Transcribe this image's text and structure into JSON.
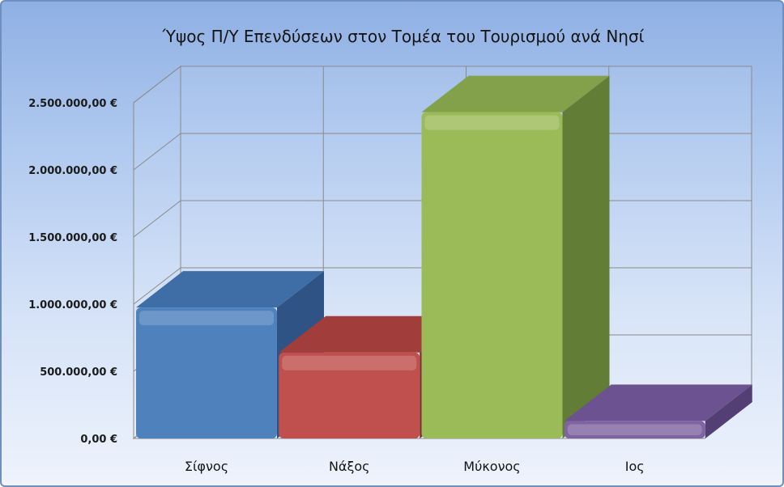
{
  "chart_data": {
    "type": "bar",
    "title": "Ύψος Π/Υ Επενδύσεων στον Τομέα του Τουρισμού ανά Νησί",
    "categories": [
      "Σίφνος",
      "Νάξος",
      "Μύκονος",
      "Ιος"
    ],
    "values": [
      975000,
      640000,
      2430000,
      130000
    ],
    "ylim": [
      0,
      2500000
    ],
    "yticks": [
      0,
      500000,
      1000000,
      1500000,
      2000000,
      2500000
    ],
    "ytick_labels": [
      "0,00 €",
      "500.000,00 €",
      "1.000.000,00 €",
      "1.500.000,00 €",
      "2.000.000,00 €",
      "2.500.000,00 €"
    ],
    "xlabel": "",
    "ylabel": "",
    "grid": true,
    "style": "3d-bar",
    "colors": {
      "front": [
        "#4f81bd",
        "#c0504d",
        "#9bbb59",
        "#8064a2"
      ],
      "top": [
        "#3f6ea7",
        "#a13d3b",
        "#83a04a",
        "#6c5290"
      ],
      "side": [
        "#2f5384",
        "#7d2f2d",
        "#627d36",
        "#533f73"
      ]
    }
  }
}
